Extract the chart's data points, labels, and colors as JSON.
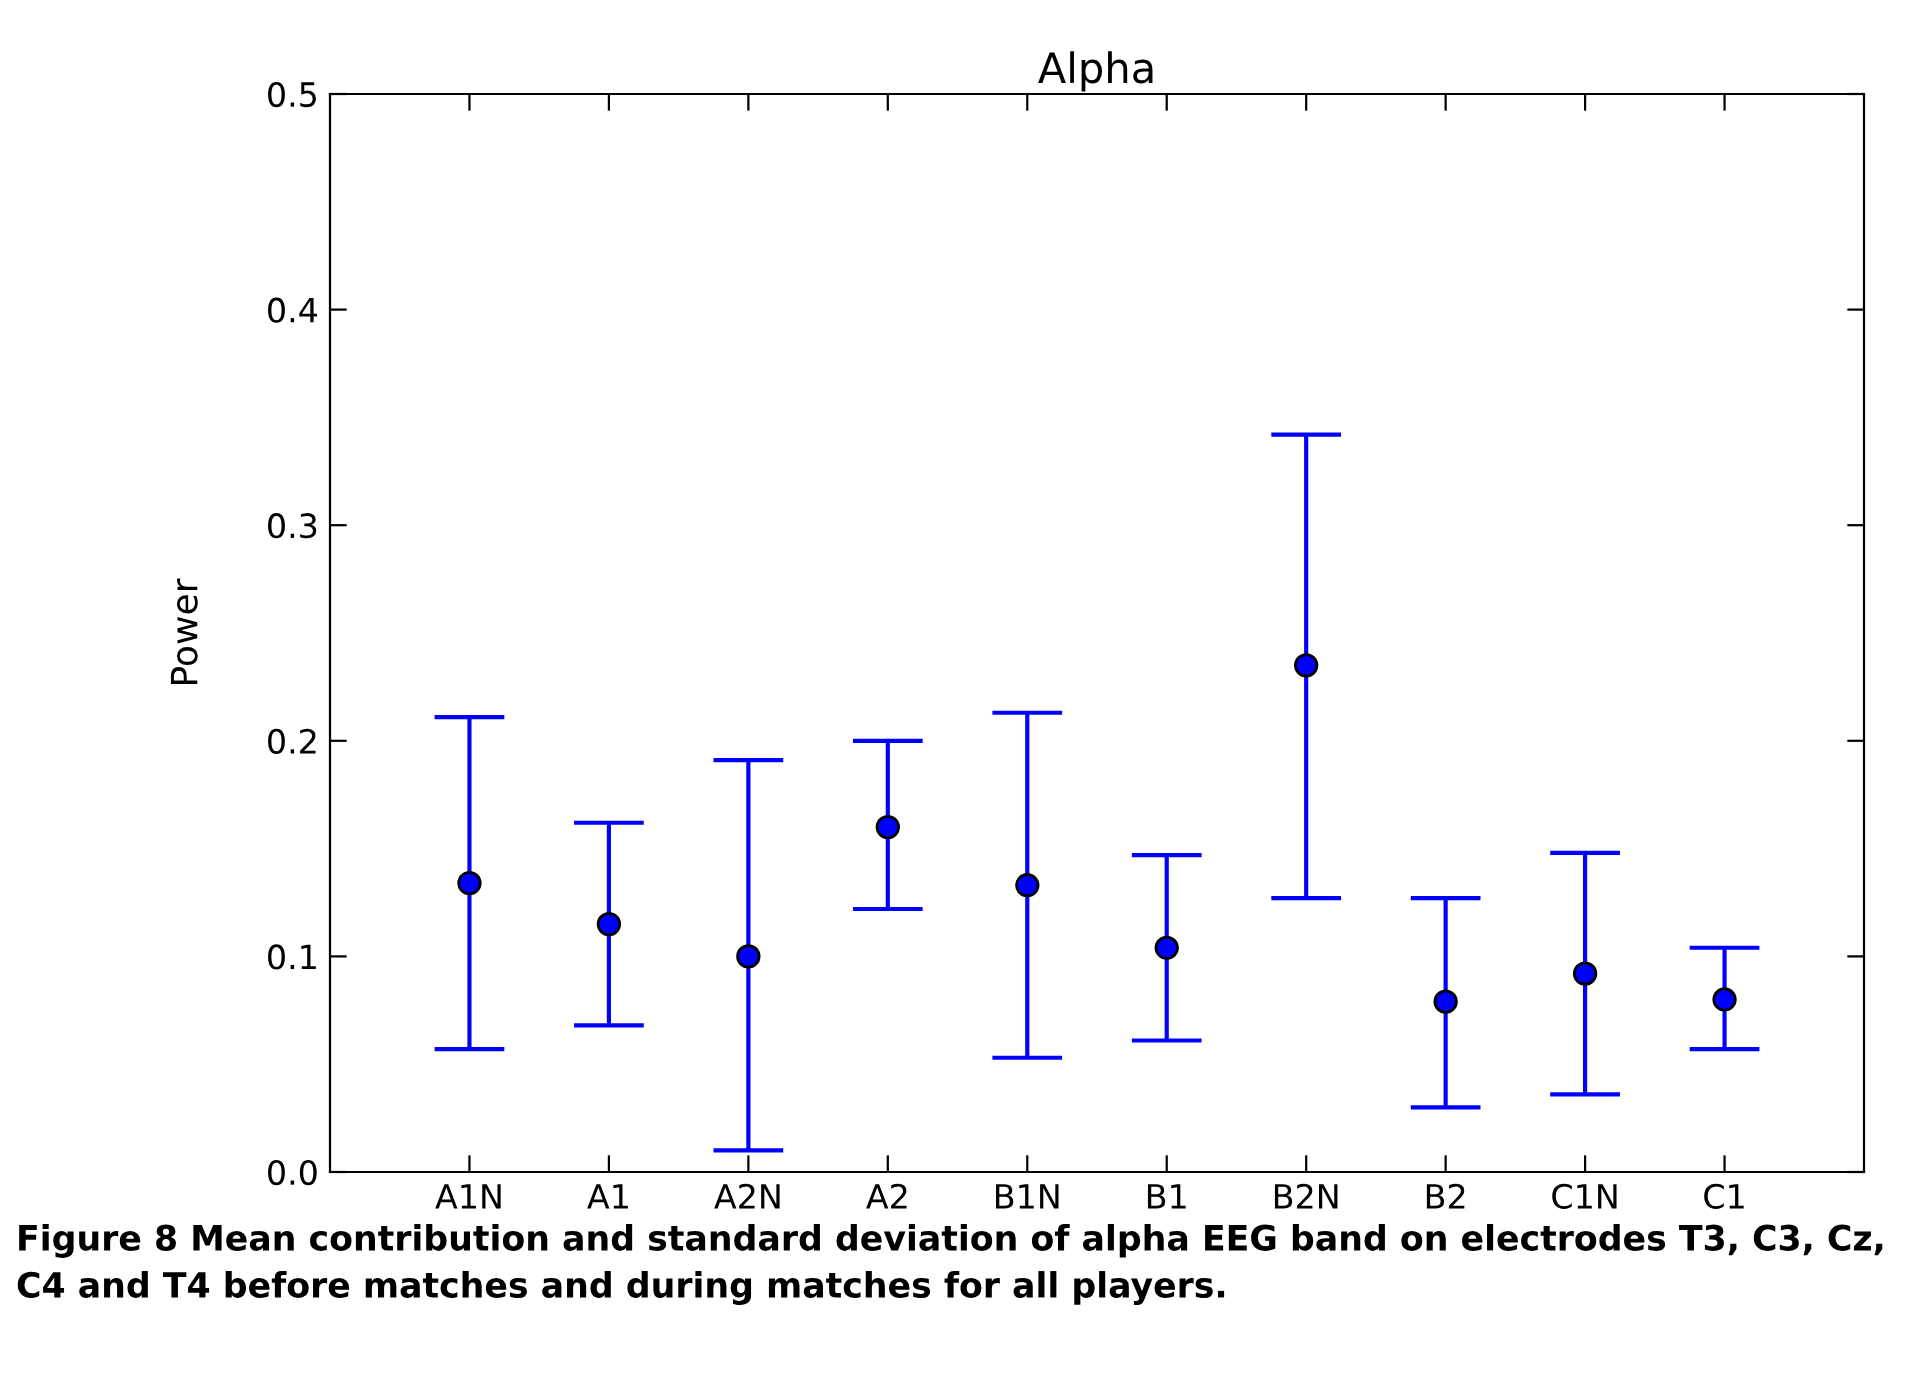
{
  "chart_data": {
    "type": "scatter",
    "title": "Alpha",
    "ylabel": "Power",
    "categories": [
      "A1N",
      "A1",
      "A2N",
      "A2",
      "B1N",
      "B1",
      "B2N",
      "B2",
      "C1N",
      "C1"
    ],
    "series": [
      {
        "color": "#0000ff",
        "values": [
          0.134,
          0.115,
          0.1,
          0.16,
          0.133,
          0.104,
          0.235,
          0.079,
          0.092,
          0.08
        ],
        "errors": [
          [
            0.057,
            0.211
          ],
          [
            0.068,
            0.162
          ],
          [
            0.01,
            0.191
          ],
          [
            0.122,
            0.2
          ],
          [
            0.053,
            0.213
          ],
          [
            0.061,
            0.147
          ],
          [
            0.127,
            0.342
          ],
          [
            0.03,
            0.127
          ],
          [
            0.036,
            0.148
          ],
          [
            0.057,
            0.104
          ]
        ]
      }
    ],
    "ylim": [
      0.0,
      0.5
    ],
    "yticks": [
      {
        "value": 0.0,
        "label": "0.0"
      },
      0.1,
      0.2,
      0.3,
      0.4,
      0.5
    ],
    "marker": "circle",
    "grid": false,
    "annotations": [
      "Figure 8 Mean contribution and standard deviation of alpha EEG band on electrodes T3, C3, Cz, C4 and T4 before matches and during matches for all players."
    ]
  }
}
